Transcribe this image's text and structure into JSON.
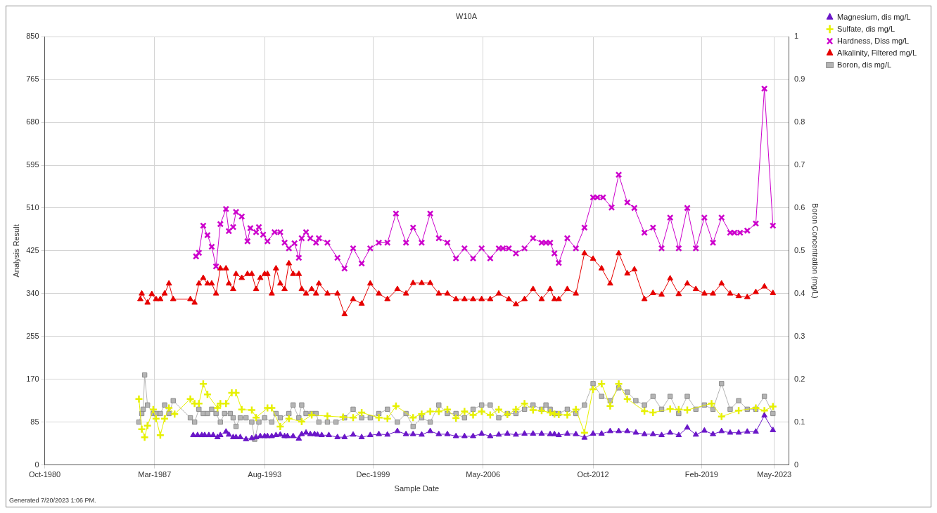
{
  "chart_data": {
    "type": "line",
    "title": "W10A",
    "xlabel": "Sample Date",
    "ylabel": "Analysis Result",
    "y2label": "Boron Concentration (mg/L)",
    "annotations": [
      "Generated 7/20/2023 1:06 PM."
    ],
    "xlim": [
      "1980-10",
      "2024-03"
    ],
    "xticks": [
      {
        "value": "1980-10",
        "label": "Oct-1980"
      },
      {
        "value": "1987-03",
        "label": "Mar-1987"
      },
      {
        "value": "1993-08",
        "label": "Aug-1993"
      },
      {
        "value": "1999-12",
        "label": "Dec-1999"
      },
      {
        "value": "2006-05",
        "label": "May-2006"
      },
      {
        "value": "2012-10",
        "label": "Oct-2012"
      },
      {
        "value": "2019-02",
        "label": "Feb-2019"
      },
      {
        "value": "2023-05",
        "label": "May-2023"
      }
    ],
    "ylim": [
      0,
      850
    ],
    "yticks": [
      0,
      85,
      170,
      255,
      340,
      425,
      510,
      595,
      680,
      765,
      850
    ],
    "y2lim": [
      0,
      1
    ],
    "y2ticks": [
      0,
      0.1,
      0.2,
      0.3,
      0.4,
      0.5,
      0.6,
      0.7,
      0.8,
      0.9,
      1
    ],
    "grid": true,
    "legend": "top right",
    "series": [
      {
        "name": "Magnesium, dis mg/L",
        "color": "#6a16c8",
        "marker": "triangle",
        "x": [
          "1989-06",
          "1989-09",
          "1989-12",
          "1990-02",
          "1990-05",
          "1990-08",
          "1990-11",
          "1991-01",
          "1991-05",
          "1991-07",
          "1991-10",
          "1991-12",
          "1992-03",
          "1992-07",
          "1992-11",
          "1993-02",
          "1993-05",
          "1993-08",
          "1993-10",
          "1994-01",
          "1994-04",
          "1994-07",
          "1994-10",
          "1994-12",
          "1995-04",
          "1995-08",
          "1995-10",
          "1996-01",
          "1996-04",
          "1996-07",
          "1996-09",
          "1996-12",
          "1997-05",
          "1997-11",
          "1998-04",
          "1998-10",
          "1999-04",
          "1999-10",
          "2000-04",
          "2000-10",
          "2001-05",
          "2001-11",
          "2002-04",
          "2002-10",
          "2003-04",
          "2003-10",
          "2004-04",
          "2004-10",
          "2005-04",
          "2005-10",
          "2006-04",
          "2006-10",
          "2007-04",
          "2007-10",
          "2008-04",
          "2008-10",
          "2009-04",
          "2009-10",
          "2010-04",
          "2010-07",
          "2010-10",
          "2011-04",
          "2011-10",
          "2012-04",
          "2012-10",
          "2013-04",
          "2013-10",
          "2014-04",
          "2014-10",
          "2015-04",
          "2015-10",
          "2016-04",
          "2016-10",
          "2017-04",
          "2017-10",
          "2018-04",
          "2018-10",
          "2019-04",
          "2019-10",
          "2020-04",
          "2020-10",
          "2021-04",
          "2021-10",
          "2022-04",
          "2022-10",
          "2023-04"
        ],
        "values": [
          59,
          59,
          59,
          59,
          59,
          59,
          55,
          59,
          66,
          60,
          55,
          55,
          55,
          51,
          53,
          55,
          57,
          57,
          57,
          57,
          59,
          60,
          57,
          57,
          57,
          52,
          61,
          64,
          61,
          61,
          60,
          59,
          59,
          55,
          55,
          60,
          55,
          59,
          61,
          60,
          67,
          61,
          61,
          60,
          67,
          61,
          61,
          57,
          57,
          57,
          62,
          57,
          60,
          62,
          60,
          62,
          62,
          62,
          61,
          61,
          59,
          62,
          61,
          54,
          62,
          62,
          67,
          67,
          67,
          64,
          61,
          61,
          59,
          64,
          59,
          74,
          60,
          68,
          61,
          67,
          64,
          64,
          66,
          66,
          98,
          69
        ]
      },
      {
        "name": "Sulfate, dis mg/L",
        "color": "#e6f000",
        "marker": "plus",
        "x": [
          "1986-04",
          "1986-06",
          "1986-08",
          "1986-10",
          "1987-02",
          "1987-04",
          "1987-07",
          "1987-10",
          "1988-01",
          "1988-05",
          "1989-04",
          "1989-07",
          "1989-10",
          "1990-01",
          "1990-04",
          "1990-11",
          "1991-01",
          "1991-05",
          "1991-09",
          "1991-12",
          "1992-04",
          "1992-11",
          "1993-02",
          "1993-10",
          "1994-01",
          "1994-07",
          "1995-01",
          "1995-10",
          "1996-05",
          "1997-04",
          "1998-03",
          "1998-10",
          "1999-04",
          "2000-04",
          "2000-10",
          "2001-04",
          "2002-04",
          "2002-10",
          "2003-04",
          "2003-10",
          "2004-04",
          "2004-10",
          "2005-04",
          "2005-10",
          "2006-04",
          "2006-10",
          "2007-04",
          "2007-10",
          "2008-04",
          "2008-10",
          "2009-04",
          "2009-10",
          "2010-04",
          "2010-07",
          "2010-10",
          "2011-04",
          "2011-10",
          "2012-04",
          "2012-10",
          "2013-04",
          "2013-10",
          "2014-04",
          "2014-10",
          "2015-10",
          "2016-04",
          "2017-04",
          "2017-10",
          "2018-04",
          "2019-09",
          "2020-04",
          "2021-04",
          "2022-04",
          "2022-10",
          "2023-04"
        ],
        "values": [
          131,
          71,
          55,
          78,
          110,
          92,
          59,
          92,
          113,
          101,
          131,
          122,
          122,
          161,
          140,
          113,
          122,
          122,
          143,
          143,
          110,
          109,
          94,
          113,
          113,
          76,
          92,
          86,
          99,
          97,
          95,
          94,
          104,
          94,
          92,
          117,
          94,
          101,
          106,
          106,
          110,
          93,
          106,
          99,
          106,
          99,
          110,
          100,
          110,
          122,
          109,
          108,
          104,
          101,
          100,
          99,
          110,
          64,
          150,
          161,
          117,
          161,
          131,
          107,
          104,
          111,
          110,
          109,
          122,
          96,
          108,
          113,
          108,
          116
        ]
      },
      {
        "name": "Hardness, Diss mg/L",
        "color": "#cc00cc",
        "marker": "cross",
        "x": [
          "1989-08",
          "1989-10",
          "1990-01",
          "1990-04",
          "1990-07",
          "1990-10",
          "1991-01",
          "1991-05",
          "1991-07",
          "1991-10",
          "1991-12",
          "1992-04",
          "1992-08",
          "1992-10",
          "1993-02",
          "1993-04",
          "1993-07",
          "1993-10",
          "1994-03",
          "1994-07",
          "1994-10",
          "1995-01",
          "1995-05",
          "1995-08",
          "1995-10",
          "1996-01",
          "1996-04",
          "1996-08",
          "1996-10",
          "1997-04",
          "1997-11",
          "1998-04",
          "1998-10",
          "1999-04",
          "1999-10",
          "2000-04",
          "2000-10",
          "2001-04",
          "2001-11",
          "2002-04",
          "2002-10",
          "2003-04",
          "2003-10",
          "2004-04",
          "2004-10",
          "2005-04",
          "2005-10",
          "2006-04",
          "2006-10",
          "2007-04",
          "2007-07",
          "2007-11",
          "2008-04",
          "2008-10",
          "2009-04",
          "2009-10",
          "2010-01",
          "2010-04",
          "2010-07",
          "2010-10",
          "2011-04",
          "2011-10",
          "2012-04",
          "2012-10",
          "2013-01",
          "2013-05",
          "2013-11",
          "2014-04",
          "2014-10",
          "2015-03",
          "2015-10",
          "2016-04",
          "2016-10",
          "2017-04",
          "2017-10",
          "2018-04",
          "2018-10",
          "2019-04",
          "2019-10",
          "2020-04",
          "2020-10",
          "2021-01",
          "2021-05",
          "2021-10",
          "2022-04",
          "2022-10",
          "2023-04"
        ],
        "values": [
          414,
          421,
          475,
          456,
          433,
          394,
          478,
          508,
          464,
          472,
          502,
          493,
          444,
          470,
          462,
          472,
          457,
          444,
          462,
          462,
          441,
          430,
          440,
          411,
          450,
          462,
          450,
          441,
          450,
          441,
          411,
          390,
          430,
          400,
          430,
          441,
          441,
          499,
          441,
          471,
          441,
          499,
          450,
          441,
          410,
          430,
          410,
          430,
          410,
          430,
          430,
          430,
          420,
          430,
          450,
          441,
          441,
          441,
          420,
          401,
          450,
          430,
          471,
          531,
          531,
          531,
          511,
          576,
          521,
          510,
          461,
          471,
          430,
          491,
          430,
          510,
          430,
          491,
          441,
          491,
          461,
          461,
          461,
          465,
          479,
          747,
          475
        ]
      },
      {
        "name": "Alkalinity, Filtered mg/L",
        "color": "#e60000",
        "marker": "triangle",
        "x": [
          "1986-05",
          "1986-06",
          "1986-10",
          "1987-01",
          "1987-04",
          "1987-07",
          "1987-10",
          "1988-01",
          "1988-04",
          "1989-04",
          "1989-07",
          "1989-10",
          "1990-01",
          "1990-04",
          "1990-07",
          "1990-10",
          "1991-01",
          "1991-05",
          "1991-07",
          "1991-10",
          "1991-12",
          "1992-04",
          "1992-08",
          "1992-11",
          "1993-02",
          "1993-05",
          "1993-08",
          "1993-10",
          "1994-01",
          "1994-04",
          "1994-07",
          "1994-10",
          "1995-01",
          "1995-04",
          "1995-08",
          "1995-10",
          "1996-01",
          "1996-05",
          "1996-08",
          "1996-10",
          "1997-04",
          "1997-11",
          "1998-04",
          "1998-10",
          "1999-04",
          "1999-10",
          "2000-04",
          "2000-10",
          "2001-05",
          "2001-11",
          "2002-04",
          "2002-10",
          "2003-04",
          "2003-10",
          "2004-04",
          "2004-10",
          "2005-04",
          "2005-10",
          "2006-04",
          "2006-10",
          "2007-04",
          "2007-11",
          "2008-04",
          "2008-10",
          "2009-04",
          "2009-10",
          "2010-04",
          "2010-07",
          "2010-10",
          "2011-04",
          "2011-10",
          "2012-04",
          "2012-10",
          "2013-04",
          "2013-10",
          "2014-04",
          "2014-10",
          "2015-03",
          "2015-10",
          "2016-04",
          "2016-10",
          "2017-04",
          "2017-10",
          "2018-04",
          "2018-10",
          "2019-04",
          "2019-10",
          "2020-04",
          "2020-10",
          "2021-04",
          "2021-10",
          "2022-04",
          "2022-10",
          "2023-04"
        ],
        "values": [
          329,
          340,
          322,
          339,
          329,
          329,
          340,
          360,
          329,
          329,
          322,
          360,
          371,
          360,
          360,
          340,
          390,
          390,
          360,
          349,
          379,
          371,
          379,
          379,
          349,
          371,
          379,
          379,
          340,
          390,
          360,
          349,
          400,
          379,
          379,
          349,
          340,
          349,
          340,
          360,
          340,
          340,
          299,
          329,
          320,
          360,
          340,
          329,
          349,
          340,
          361,
          361,
          361,
          340,
          340,
          329,
          329,
          329,
          329,
          329,
          340,
          329,
          319,
          329,
          349,
          329,
          349,
          329,
          329,
          349,
          340,
          420,
          409,
          390,
          360,
          420,
          380,
          388,
          329,
          341,
          338,
          370,
          339,
          360,
          349,
          340,
          340,
          360,
          340,
          335,
          333,
          343,
          354,
          341
        ]
      },
      {
        "name": "Boron, dis mg/L",
        "color": "#b4b4b4",
        "marker": "square",
        "axis": "y2",
        "x": [
          "1986-04",
          "1986-06",
          "1986-07",
          "1986-08",
          "1986-10",
          "1987-02",
          "1987-04",
          "1987-07",
          "1987-10",
          "1988-01",
          "1988-04",
          "1989-04",
          "1989-07",
          "1989-10",
          "1990-01",
          "1990-04",
          "1990-07",
          "1990-10",
          "1991-01",
          "1991-04",
          "1991-08",
          "1991-10",
          "1991-12",
          "1992-03",
          "1992-07",
          "1992-11",
          "1993-01",
          "1993-04",
          "1993-08",
          "1994-01",
          "1994-04",
          "1994-07",
          "1995-01",
          "1995-04",
          "1995-08",
          "1995-10",
          "1996-01",
          "1996-05",
          "1996-08",
          "1996-10",
          "1997-04",
          "1997-10",
          "1998-04",
          "1998-10",
          "1999-04",
          "1999-10",
          "2000-04",
          "2000-10",
          "2001-05",
          "2001-11",
          "2002-04",
          "2002-10",
          "2003-04",
          "2003-10",
          "2004-04",
          "2004-10",
          "2005-04",
          "2005-10",
          "2006-04",
          "2006-10",
          "2007-04",
          "2007-10",
          "2008-04",
          "2008-10",
          "2009-04",
          "2009-10",
          "2010-01",
          "2010-04",
          "2010-07",
          "2010-10",
          "2011-04",
          "2011-10",
          "2012-04",
          "2012-10",
          "2013-04",
          "2013-10",
          "2014-04",
          "2014-10",
          "2015-04",
          "2015-10",
          "2016-04",
          "2016-10",
          "2017-04",
          "2017-10",
          "2018-04",
          "2018-10",
          "2019-04",
          "2019-10",
          "2020-04",
          "2020-10",
          "2021-04",
          "2021-10",
          "2022-04",
          "2022-10",
          "2023-04"
        ],
        "values": [
          0.1,
          0.12,
          0.13,
          0.21,
          0.14,
          0.12,
          0.12,
          0.12,
          0.14,
          0.12,
          0.15,
          0.11,
          0.1,
          0.13,
          0.12,
          0.12,
          0.13,
          0.12,
          0.1,
          0.12,
          0.12,
          0.11,
          0.09,
          0.11,
          0.11,
          0.1,
          0.06,
          0.1,
          0.11,
          0.1,
          0.12,
          0.11,
          0.12,
          0.14,
          0.11,
          0.14,
          0.12,
          0.12,
          0.12,
          0.1,
          0.1,
          0.1,
          0.11,
          0.13,
          0.11,
          0.11,
          0.12,
          0.13,
          0.1,
          0.12,
          0.09,
          0.11,
          0.1,
          0.14,
          0.12,
          0.12,
          0.11,
          0.13,
          0.14,
          0.14,
          0.11,
          0.12,
          0.12,
          0.13,
          0.14,
          0.13,
          0.14,
          0.13,
          0.12,
          0.12,
          0.13,
          0.12,
          0.14,
          0.19,
          0.16,
          0.15,
          0.18,
          0.17,
          0.15,
          0.14,
          0.16,
          0.13,
          0.16,
          0.12,
          0.16,
          0.13,
          0.14,
          0.13,
          0.19,
          0.13,
          0.15,
          0.13,
          0.13,
          0.16,
          0.12
        ]
      }
    ]
  }
}
